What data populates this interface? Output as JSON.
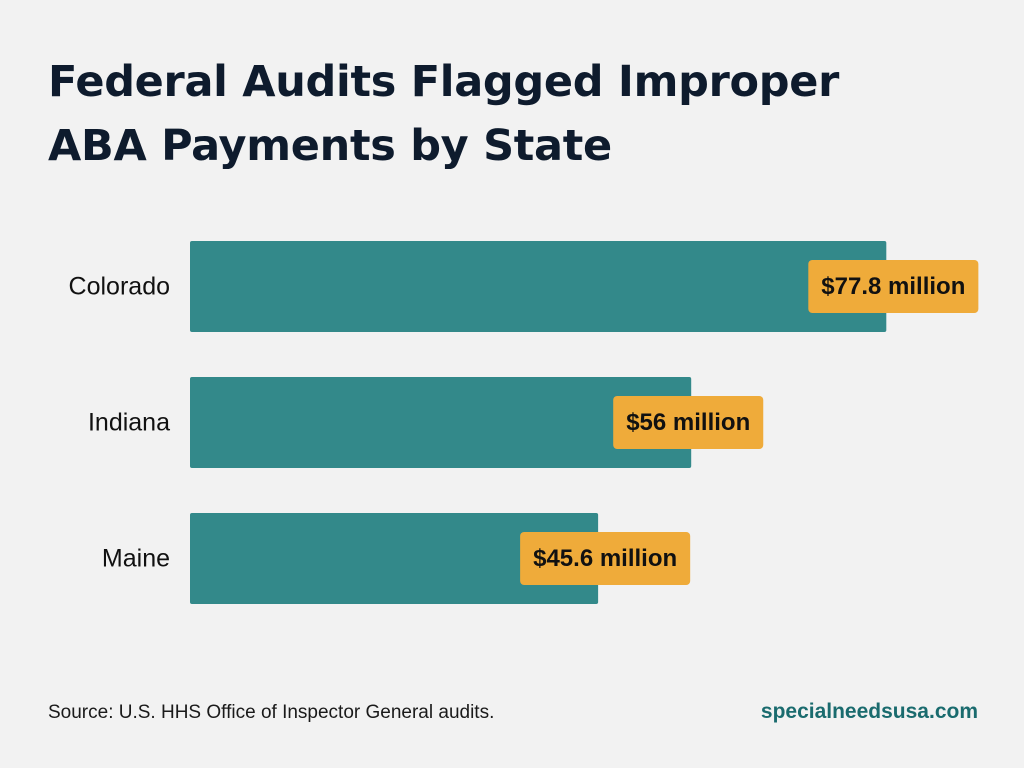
{
  "chart_data": {
    "type": "bar",
    "orientation": "horizontal",
    "title": "Federal Audits Flagged Improper ABA Payments by State",
    "categories": [
      "Colorado",
      "Indiana",
      "Maine"
    ],
    "values": [
      77.8,
      56,
      45.6
    ],
    "value_labels": [
      "$77.8 million",
      "$56 million",
      "$45.6 million"
    ],
    "unit": "million USD",
    "xlabel": "",
    "ylabel": "",
    "grid": false,
    "legend": "none",
    "colors": {
      "bar": "#33898a",
      "label_bg": "#efab3a",
      "label_text": "#111111"
    }
  },
  "footer": {
    "source": "Source: U.S. HHS Office of Inspector General audits.",
    "brand": "specialneedsusa.com"
  }
}
